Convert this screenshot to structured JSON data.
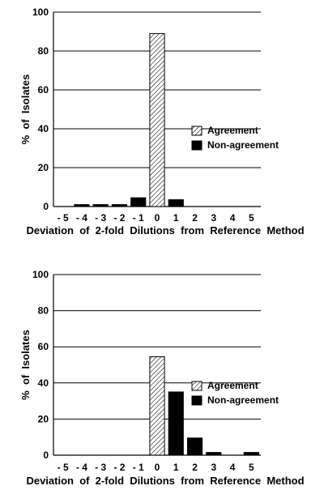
{
  "chart_data": [
    {
      "type": "bar",
      "categories": [
        "- 5",
        "- 4",
        "- 3",
        "- 2",
        "- 1",
        "0",
        "1",
        "2",
        "3",
        "4",
        "5"
      ],
      "series": [
        {
          "name": "Agreement",
          "values": [
            0,
            0,
            0,
            0,
            0,
            89,
            0,
            0,
            0,
            0,
            0
          ]
        },
        {
          "name": "Non-agreement",
          "values": [
            0,
            1,
            1,
            1,
            4.5,
            0,
            3.5,
            0,
            0,
            0,
            0
          ]
        }
      ],
      "title": "",
      "xlabel": "Deviation  of  2-fold  Dilutions  from  Reference  Method",
      "ylabel": "%  of  Isolates",
      "ylim": [
        0,
        100
      ],
      "yticks": [
        "0",
        "20",
        "40",
        "60",
        "80",
        "100"
      ],
      "grid": true,
      "legend": "right",
      "colors": {
        "Agreement": "#ffffff",
        "Non-agreement": "#000000"
      }
    },
    {
      "type": "bar",
      "categories": [
        "- 5",
        "- 4",
        "- 3",
        "- 2",
        "- 1",
        "0",
        "1",
        "2",
        "3",
        "4",
        "5"
      ],
      "series": [
        {
          "name": "Agreement",
          "values": [
            0,
            0,
            0,
            0,
            0,
            54.5,
            0,
            0,
            0,
            0,
            0
          ]
        },
        {
          "name": "Non-agreement",
          "values": [
            0,
            0,
            0,
            0,
            0,
            0,
            35,
            9.5,
            1.5,
            0,
            1.5
          ]
        }
      ],
      "title": "",
      "xlabel": "Deviation  of  2-fold  Dilutions  from  Reference  Method",
      "ylabel": "%  of  Isolates",
      "ylim": [
        0,
        100
      ],
      "yticks": [
        "0",
        "20",
        "40",
        "60",
        "80",
        "100"
      ],
      "grid": true,
      "legend": "right",
      "colors": {
        "Agreement": "#ffffff",
        "Non-agreement": "#000000"
      }
    }
  ]
}
